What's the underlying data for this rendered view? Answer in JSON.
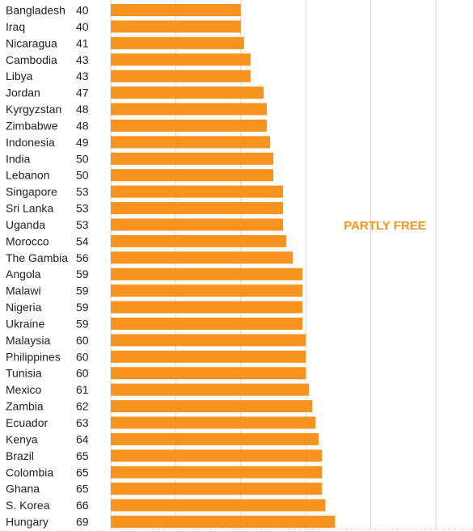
{
  "chart_data": {
    "type": "bar",
    "orientation": "horizontal",
    "categories": [
      "Bangladesh",
      "Iraq",
      "Nicaragua",
      "Cambodia",
      "Libya",
      "Jordan",
      "Kyrgyzstan",
      "Zimbabwe",
      "Indonesia",
      "India",
      "Lebanon",
      "Singapore",
      "Sri Lanka",
      "Uganda",
      "Morocco",
      "The Gambia",
      "Angola",
      "Malawi",
      "Nigeria",
      "Ukraine",
      "Malaysia",
      "Philippines",
      "Tunisia",
      "Mexico",
      "Zambia",
      "Ecuador",
      "Kenya",
      "Brazil",
      "Colombia",
      "Ghana",
      "S. Korea",
      "Hungary"
    ],
    "values": [
      40,
      40,
      41,
      43,
      43,
      47,
      48,
      48,
      49,
      50,
      50,
      53,
      53,
      53,
      54,
      56,
      59,
      59,
      59,
      59,
      60,
      60,
      60,
      61,
      62,
      63,
      64,
      65,
      65,
      65,
      66,
      69
    ],
    "xlim": [
      0,
      100
    ],
    "grid": true,
    "annotation": "PARTLY FREE",
    "bar_color": "#F7931E",
    "annotation_color": "#F7931E"
  }
}
